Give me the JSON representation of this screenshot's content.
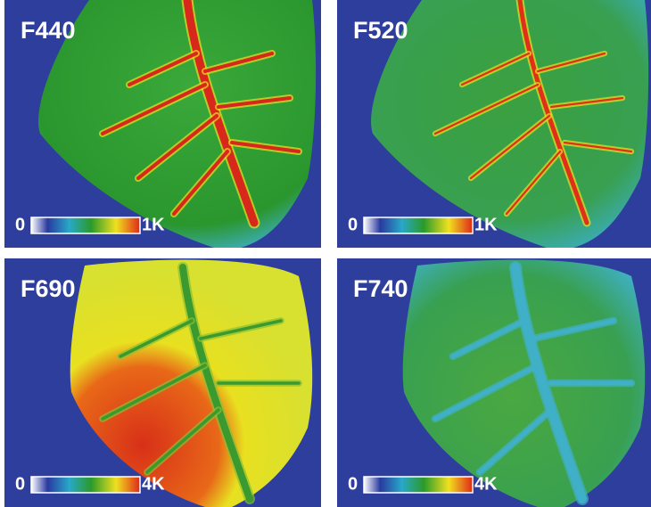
{
  "panels": [
    {
      "label": "F440",
      "scale_min": "0",
      "scale_max": "1K"
    },
    {
      "label": "F520",
      "scale_min": "0",
      "scale_max": "1K"
    },
    {
      "label": "F690",
      "scale_min": "0",
      "scale_max": "4K"
    },
    {
      "label": "F740",
      "scale_min": "0",
      "scale_max": "4K"
    }
  ]
}
